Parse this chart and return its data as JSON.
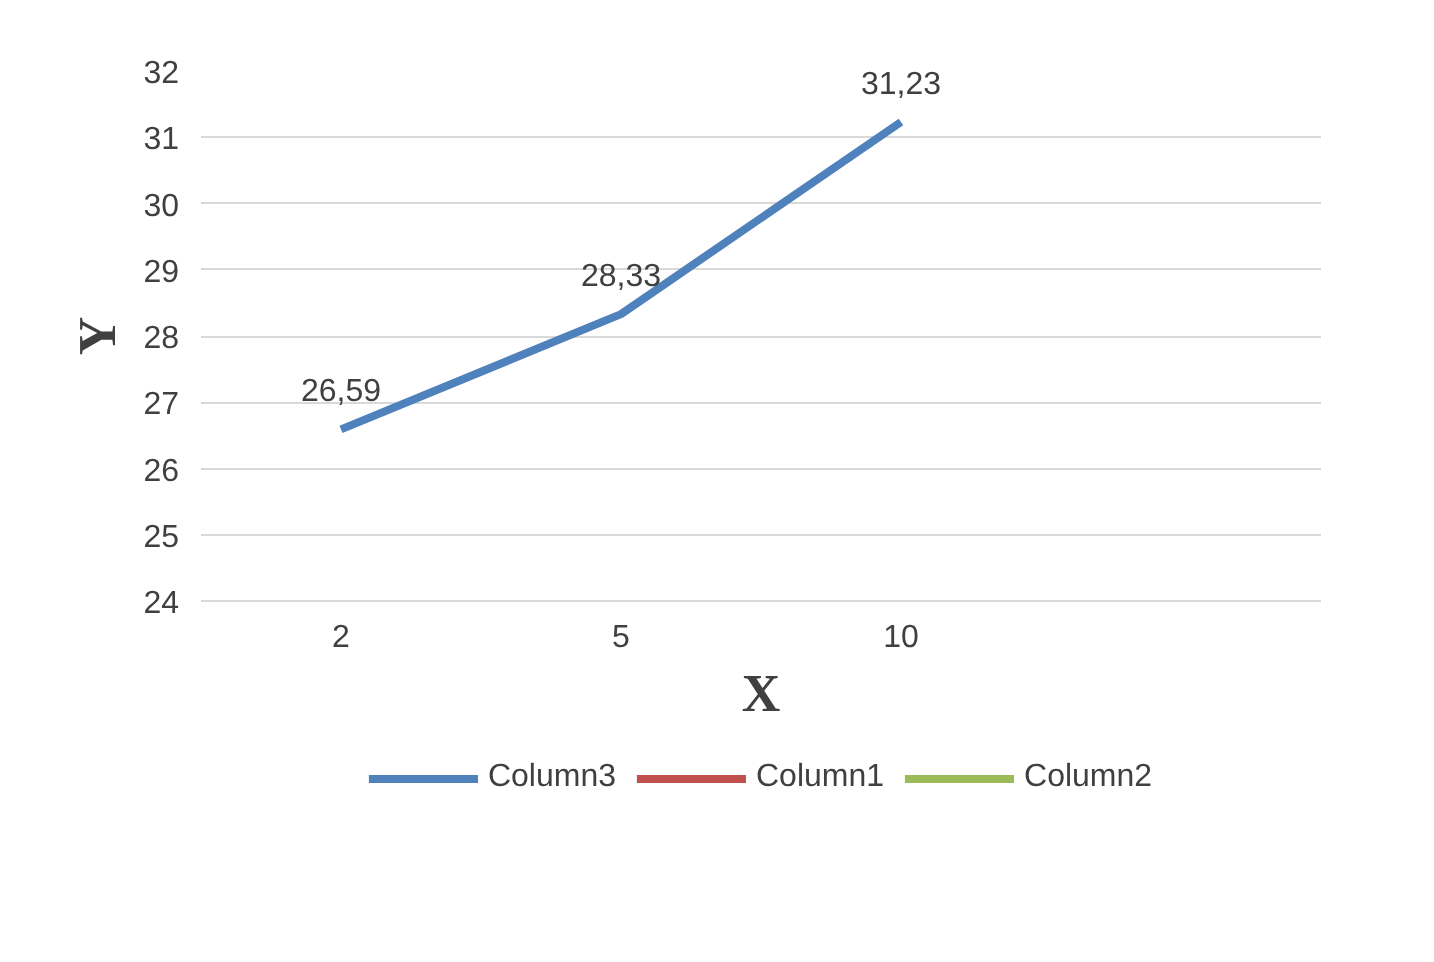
{
  "chart_data": {
    "type": "line",
    "xlabel": "X",
    "ylabel": "Y",
    "categories": [
      "2",
      "5",
      "10",
      null
    ],
    "series": [
      {
        "name": "Column3",
        "color": "#4f81bd",
        "values": [
          26.59,
          28.33,
          31.23,
          null
        ],
        "value_labels": [
          "26,59",
          "28,33",
          "31,23",
          null
        ]
      },
      {
        "name": "Column1",
        "color": "#c0504d",
        "values": [
          null,
          null,
          null,
          null
        ]
      },
      {
        "name": "Column2",
        "color": "#9bbb59",
        "values": [
          null,
          null,
          null,
          null
        ]
      }
    ],
    "ylim": [
      24,
      32
    ],
    "yticks": [
      24,
      25,
      26,
      27,
      28,
      29,
      30,
      31,
      32
    ],
    "grid": "y",
    "legend": "bottom",
    "marker": "none",
    "line_style": "solid"
  }
}
